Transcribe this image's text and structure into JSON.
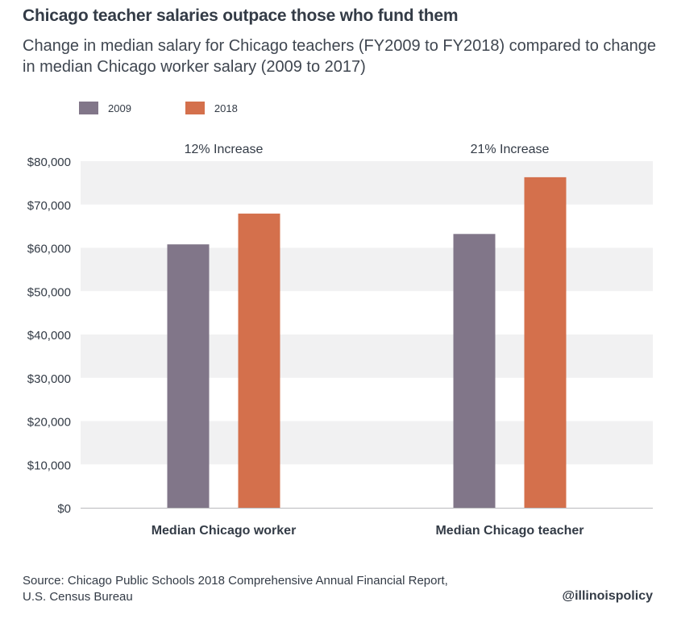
{
  "chart_data": {
    "type": "bar",
    "title": "Chicago teacher salaries outpace those who fund them",
    "subtitle": "Change in median salary for Chicago teachers (FY2009 to FY2018) compared to change in median Chicago worker salary (2009 to 2017)",
    "categories": [
      "Median Chicago worker",
      "Median Chicago teacher"
    ],
    "group_annotations": [
      "12% Increase",
      "21% Increase"
    ],
    "series": [
      {
        "name": "2009",
        "color": "#817689",
        "values": [
          60800,
          63200
        ]
      },
      {
        "name": "2018",
        "color": "#d4704c",
        "values": [
          67900,
          76300
        ]
      }
    ],
    "yticks": [
      0,
      10000,
      20000,
      30000,
      40000,
      50000,
      60000,
      70000,
      80000
    ],
    "ytick_labels": [
      "$0",
      "$10,000",
      "$20,000",
      "$30,000",
      "$40,000",
      "$50,000",
      "$60,000",
      "$70,000",
      "$80,000"
    ],
    "ylim": [
      0,
      80000
    ],
    "xlabel": "",
    "ylabel": "",
    "legend_position": "top-left",
    "grid": "alternating horizontal bands"
  },
  "source_lines": [
    "Source: Chicago Public Schools 2018 Comprehensive Annual Financial Report,",
    "U.S. Census Bureau"
  ],
  "credit": "@illinoispolicy",
  "colors": {
    "band": "#f1f1f2",
    "text": "#333b46",
    "axis": "#b9b9bd"
  }
}
